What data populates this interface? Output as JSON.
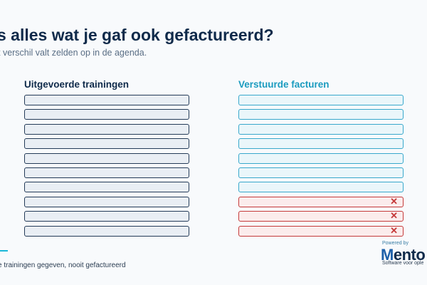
{
  "header": {
    "title": "s alles wat je gaf ook gefactureerd?",
    "subtitle": "t verschil valt zelden op in de agenda."
  },
  "columns": {
    "left": {
      "title": "Uitgevoerde trainingen",
      "row_count": 10
    },
    "right": {
      "title": "Verstuurde facturen",
      "rows": [
        {
          "status": "invoiced"
        },
        {
          "status": "invoiced"
        },
        {
          "status": "invoiced"
        },
        {
          "status": "invoiced"
        },
        {
          "status": "invoiced"
        },
        {
          "status": "invoiced"
        },
        {
          "status": "invoiced"
        },
        {
          "status": "missing",
          "icon": "close-icon",
          "mark": "✕"
        },
        {
          "status": "missing",
          "icon": "close-icon",
          "mark": "✕"
        },
        {
          "status": "missing",
          "icon": "close-icon",
          "mark": "✕"
        }
      ]
    }
  },
  "footer": {
    "note": "e trainingen gegeven, nooit gefactureerd"
  },
  "logo": {
    "powered_by": "Powered by",
    "brand_prefix": "M",
    "brand_rest": "ento",
    "tagline": "Software voor ople"
  },
  "colors": {
    "navy": "#0f2a4a",
    "accent": "#1a9bbf",
    "error": "#c53a3a"
  }
}
